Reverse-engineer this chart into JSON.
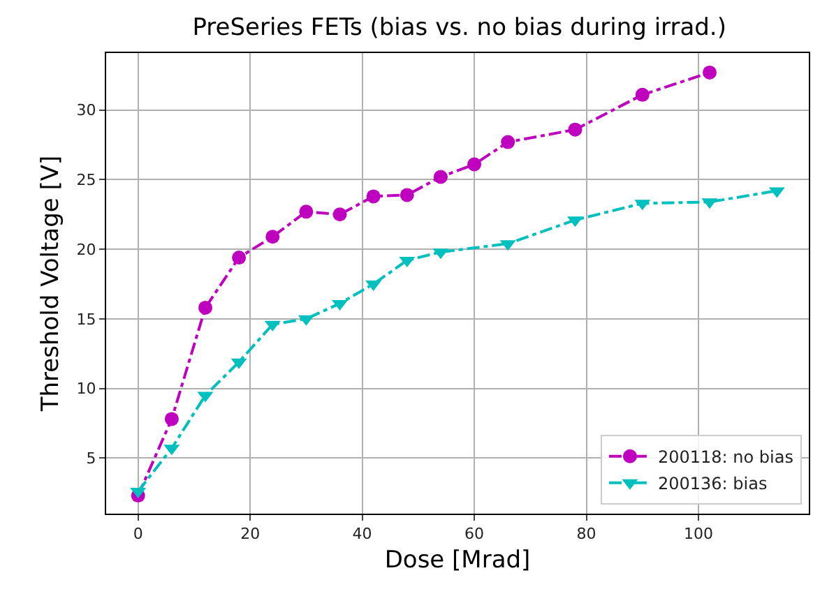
{
  "chart_data": {
    "type": "line",
    "title": "PreSeries FETs (bias vs. no bias during irrad.)",
    "xlabel": "Dose [Mrad]",
    "ylabel": "Threshold Voltage [V]",
    "series": [
      {
        "name": "200118: no bias",
        "color": "#bf00bf",
        "marker": "circle",
        "x": [
          0,
          6,
          12,
          18,
          24,
          30,
          36,
          42,
          48,
          54,
          60,
          66,
          78,
          90,
          102
        ],
        "values": [
          2.3,
          7.8,
          15.8,
          19.4,
          20.9,
          22.7,
          22.5,
          23.8,
          23.9,
          25.2,
          26.1,
          27.7,
          28.6,
          31.1,
          32.7
        ]
      },
      {
        "name": "200136: bias",
        "color": "#00bfbf",
        "marker": "triangle",
        "x": [
          0,
          6,
          12,
          18,
          24,
          30,
          36,
          42,
          48,
          54,
          66,
          78,
          90,
          102,
          114
        ],
        "values": [
          2.6,
          5.7,
          9.5,
          11.9,
          14.6,
          15.0,
          16.1,
          17.5,
          19.2,
          19.8,
          20.4,
          22.1,
          23.3,
          23.4,
          24.2
        ]
      }
    ],
    "line_style": "dashdot",
    "xlim": [
      -5.7,
      119.7
    ],
    "xticks": [
      0,
      20,
      40,
      60,
      80,
      100
    ],
    "ylim": [
      1.0,
      34.1
    ],
    "yticks": [
      5,
      10,
      15,
      20,
      25,
      30
    ],
    "grid": true,
    "legend": "bottom right"
  }
}
